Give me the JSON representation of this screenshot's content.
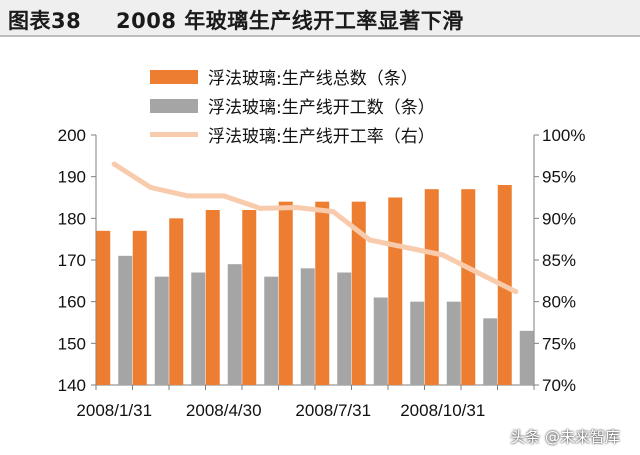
{
  "header": {
    "figure_label": "图表38",
    "title": "2008 年玻璃生产线开工率显著下滑"
  },
  "watermark": "头条 @未来智库",
  "colors": {
    "total_bar": "#ED7D31",
    "operating_bar": "#A5A5A5",
    "rate_line": "#F8CBAD"
  },
  "chart_data": {
    "type": "bar",
    "title": "",
    "categories": [
      "2008/1/31",
      "2008/2/29",
      "2008/3/31",
      "2008/4/30",
      "2008/5/31",
      "2008/6/30",
      "2008/7/31",
      "2008/8/31",
      "2008/9/30",
      "2008/10/31",
      "2008/11/30",
      "2008/12/31"
    ],
    "x_tick_labels": [
      "2008/1/31",
      "2008/4/30",
      "2008/7/31",
      "2008/10/31"
    ],
    "x_tick_indices": [
      0,
      3,
      6,
      9
    ],
    "series": [
      {
        "name": "浮法玻璃:生产线总数（条）",
        "kind": "bar",
        "axis": "left",
        "values": [
          177,
          177,
          180,
          182,
          182,
          184,
          184,
          184,
          185,
          187,
          187,
          188
        ]
      },
      {
        "name": "浮法玻璃:生产线开工数（条）",
        "kind": "bar",
        "axis": "left",
        "values": [
          171,
          166,
          167,
          169,
          166,
          168,
          167,
          161,
          160,
          160,
          156,
          153
        ]
      },
      {
        "name": "浮法玻璃:生产线开工率（右）",
        "kind": "line",
        "axis": "right",
        "values": [
          96.5,
          93.7,
          92.7,
          92.7,
          91.2,
          91.3,
          90.8,
          87.4,
          86.5,
          85.6,
          83.4,
          81.2
        ]
      }
    ],
    "ylim_left": [
      140,
      200
    ],
    "yticks_left": [
      140,
      150,
      160,
      170,
      180,
      190,
      200
    ],
    "ylim_right": [
      70,
      100
    ],
    "yticks_right": [
      "70%",
      "75%",
      "80%",
      "85%",
      "90%",
      "95%",
      "100%"
    ],
    "legend_position": "top",
    "grid": false
  }
}
